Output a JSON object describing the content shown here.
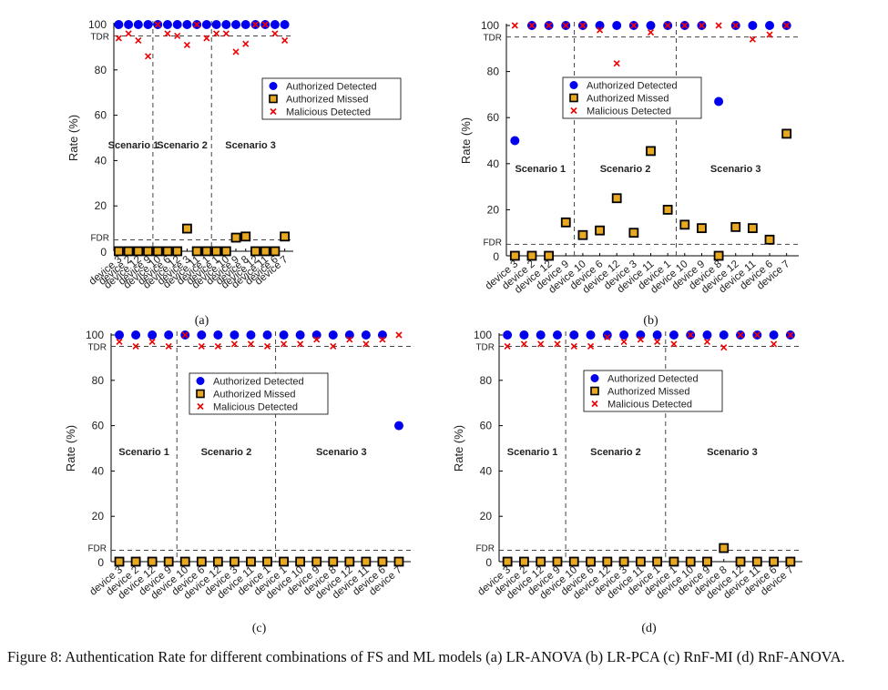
{
  "caption": "Figure 8: Authentication Rate for different combinations of FS and ML models (a) LR-ANOVA (b) LR-PCA (c) RnF-MI (d) RnF-ANOVA.",
  "colors": {
    "authorized_detected": "#0000ee",
    "authorized_missed": "#e8a820",
    "malicious_detected": "#ee0000"
  },
  "chart_data": [
    {
      "type": "scatter",
      "panel_label": "(a)",
      "ylabel": "Rate (%)",
      "ylim": [
        0,
        100
      ],
      "yticks": [
        "0",
        "20",
        "40",
        "60",
        "80",
        "100"
      ],
      "threshold_labels": [
        "TDR",
        "FDR"
      ],
      "tdr": 95,
      "fdr": 5,
      "legend": [
        "Authorized Detected",
        "Authorized Missed",
        "Malicious Detected"
      ],
      "scenarios": [
        {
          "name": "Scenario 1",
          "devices": [
            "device 3",
            "device 2",
            "device 12",
            "device 9"
          ],
          "authorized_detected": [
            100,
            100,
            100,
            100
          ],
          "authorized_missed": [
            0,
            0,
            0,
            0
          ],
          "malicious_detected": [
            94,
            96,
            93,
            86
          ]
        },
        {
          "name": "Scenario 2",
          "devices": [
            "device 10",
            "device 6",
            "device 12",
            "device 3",
            "device 11",
            "device 1"
          ],
          "authorized_detected": [
            100,
            100,
            100,
            100,
            100,
            100
          ],
          "authorized_missed": [
            0,
            0,
            0,
            10,
            0,
            0
          ],
          "malicious_detected": [
            100,
            96,
            95,
            91,
            100,
            94
          ]
        },
        {
          "name": "Scenario 3",
          "devices": [
            "device 1",
            "device 10",
            "device 9",
            "device 8",
            "device 12",
            "device 11",
            "device 6",
            "device 7"
          ],
          "authorized_detected": [
            100,
            100,
            100,
            100,
            100,
            100,
            100,
            100
          ],
          "authorized_missed": [
            0,
            0,
            6,
            6.5,
            0,
            0,
            0,
            6.5
          ],
          "malicious_detected": [
            96,
            96,
            88,
            91.5,
            100,
            100,
            96,
            93
          ]
        }
      ]
    },
    {
      "type": "scatter",
      "panel_label": "(b)",
      "ylabel": "Rate (%)",
      "ylim": [
        0,
        100
      ],
      "yticks": [
        "0",
        "20",
        "40",
        "60",
        "80",
        "100"
      ],
      "threshold_labels": [
        "TDR",
        "FDR"
      ],
      "tdr": 95,
      "fdr": 5,
      "legend": [
        "Authorized Detected",
        "Authorized Missed",
        "Malicious Detected"
      ],
      "scenarios": [
        {
          "name": "Scenario 1",
          "devices": [
            "device 3",
            "device 2",
            "device 12",
            "device 9"
          ],
          "authorized_detected": [
            50,
            100,
            100,
            100
          ],
          "authorized_missed": [
            0,
            0,
            0,
            14.5
          ],
          "malicious_detected": [
            100,
            100,
            100,
            100
          ]
        },
        {
          "name": "Scenario 2",
          "devices": [
            "device 10",
            "device 6",
            "device 12",
            "device 3",
            "device 11",
            "device 1"
          ],
          "authorized_detected": [
            100,
            100,
            100,
            100,
            100,
            100
          ],
          "authorized_missed": [
            9,
            11,
            25,
            10,
            45.5,
            20
          ],
          "malicious_detected": [
            100,
            98,
            83.5,
            100,
            97,
            100
          ]
        },
        {
          "name": "Scenario 3",
          "devices": [
            "device 10",
            "device 9",
            "device 8",
            "device 12",
            "device 11",
            "device 6",
            "device 7"
          ],
          "authorized_detected": [
            100,
            100,
            67,
            100,
            100,
            100,
            100
          ],
          "authorized_missed": [
            13.5,
            12,
            0,
            12.5,
            12,
            7,
            53
          ],
          "malicious_detected": [
            100,
            100,
            100,
            100,
            94,
            96,
            100
          ]
        }
      ]
    },
    {
      "type": "scatter",
      "panel_label": "(c)",
      "ylabel": "Rate (%)",
      "ylim": [
        0,
        100
      ],
      "yticks": [
        "0",
        "20",
        "40",
        "60",
        "80",
        "100"
      ],
      "threshold_labels": [
        "TDR",
        "FDR"
      ],
      "tdr": 95,
      "fdr": 5,
      "legend": [
        "Authorized Detected",
        "Authorized Missed",
        "Malicious Detected"
      ],
      "scenarios": [
        {
          "name": "Scenario 1",
          "devices": [
            "device 3",
            "device 2",
            "device 12",
            "device 9"
          ],
          "authorized_detected": [
            100,
            100,
            100,
            100
          ],
          "authorized_missed": [
            0,
            0,
            0,
            0
          ],
          "malicious_detected": [
            97,
            95,
            97,
            95
          ]
        },
        {
          "name": "Scenario 2",
          "devices": [
            "device 10",
            "device 6",
            "device 12",
            "device 3",
            "device 11",
            "device 1"
          ],
          "authorized_detected": [
            100,
            100,
            100,
            100,
            100,
            100
          ],
          "authorized_missed": [
            0,
            0,
            0,
            0,
            0,
            0
          ],
          "malicious_detected": [
            100,
            95,
            95,
            96,
            96,
            95
          ]
        },
        {
          "name": "Scenario 3",
          "devices": [
            "device 1",
            "device 10",
            "device 9",
            "device 8",
            "device 12",
            "device 11",
            "device 6",
            "device 7"
          ],
          "authorized_detected": [
            100,
            100,
            100,
            100,
            100,
            100,
            100,
            60
          ],
          "authorized_missed": [
            0,
            0,
            0,
            0,
            0,
            0,
            0,
            0
          ],
          "malicious_detected": [
            96,
            96,
            98,
            95,
            98,
            96,
            98,
            100
          ]
        }
      ]
    },
    {
      "type": "scatter",
      "panel_label": "(d)",
      "ylabel": "Rate (%)",
      "ylim": [
        0,
        100
      ],
      "yticks": [
        "0",
        "20",
        "40",
        "60",
        "80",
        "100"
      ],
      "threshold_labels": [
        "TDR",
        "FDR"
      ],
      "tdr": 95,
      "fdr": 5,
      "legend": [
        "Authorized Detected",
        "Authorized Missed",
        "Malicious Detected"
      ],
      "scenarios": [
        {
          "name": "Scenario 1",
          "devices": [
            "device 3",
            "device 2",
            "device 12",
            "device 9"
          ],
          "authorized_detected": [
            100,
            100,
            100,
            100
          ],
          "authorized_missed": [
            0,
            0,
            0,
            0
          ],
          "malicious_detected": [
            95,
            96,
            96,
            96
          ]
        },
        {
          "name": "Scenario 2",
          "devices": [
            "device 10",
            "device 6",
            "device 12",
            "device 3",
            "device 11",
            "device 1"
          ],
          "authorized_detected": [
            100,
            100,
            100,
            100,
            100,
            100
          ],
          "authorized_missed": [
            0,
            0,
            0,
            0,
            0,
            0
          ],
          "malicious_detected": [
            95,
            95,
            99,
            97,
            98,
            97
          ]
        },
        {
          "name": "Scenario 3",
          "devices": [
            "device 1",
            "device 10",
            "device 9",
            "device 8",
            "device 12",
            "device 11",
            "device 6",
            "device 7"
          ],
          "authorized_detected": [
            100,
            100,
            100,
            100,
            100,
            100,
            100,
            100
          ],
          "authorized_missed": [
            0,
            0,
            0,
            6,
            0,
            0,
            0,
            0
          ],
          "malicious_detected": [
            96,
            100,
            97,
            94.5,
            100,
            100,
            96,
            100
          ]
        }
      ]
    }
  ]
}
